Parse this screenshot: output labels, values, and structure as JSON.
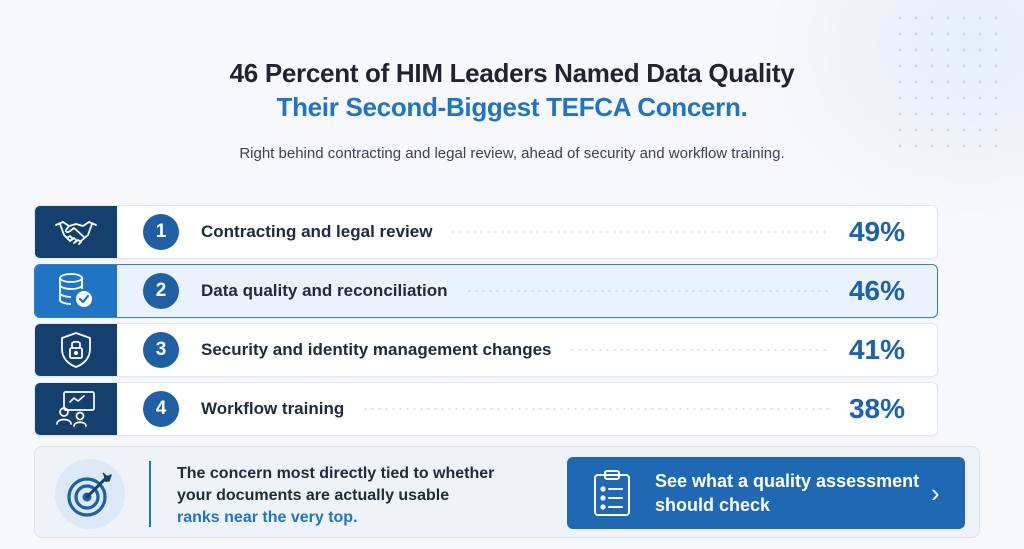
{
  "header": {
    "title_line1": "46 Percent of HIM Leaders Named Data Quality",
    "title_line2": "Their Second-Biggest TEFCA Concern.",
    "subtitle": "Right behind contracting and legal review, ahead of security and workflow training."
  },
  "colors": {
    "navy": "#13406e",
    "accent_blue": "#1f74c3",
    "percent_blue": "#1a63ad",
    "highlight_bg": "#eaf3fc"
  },
  "concerns": [
    {
      "rank": "1",
      "label": "Contracting and legal review",
      "percent": "49%",
      "icon": "handshake-icon",
      "highlighted": false
    },
    {
      "rank": "2",
      "label": "Data quality and reconciliation",
      "percent": "46%",
      "icon": "database-check-icon",
      "highlighted": true
    },
    {
      "rank": "3",
      "label": "Security and identity management changes",
      "percent": "41%",
      "icon": "shield-lock-icon",
      "highlighted": false
    },
    {
      "rank": "4",
      "label": "Workflow training",
      "percent": "38%",
      "icon": "people-whiteboard-icon",
      "highlighted": false
    }
  ],
  "footer": {
    "icon": "target-icon",
    "line1": "The concern most directly tied to whether",
    "line2": "your documents are actually usable",
    "line3": "ranks near the very top.",
    "cta_line1": "See what a quality assessment",
    "cta_line2": "should check",
    "cta_icon": "clipboard-checklist-icon",
    "cta_chevron": "›"
  }
}
